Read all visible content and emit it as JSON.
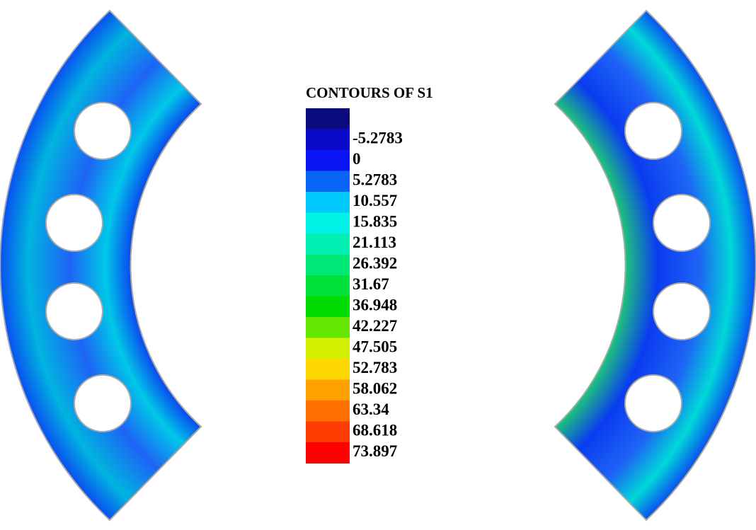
{
  "legend": {
    "title": "CONTOURS OF S1",
    "labels": [
      -5.2783,
      0,
      5.2783,
      10.557,
      15.835,
      21.113,
      26.392,
      31.67,
      36.948,
      42.227,
      47.505,
      52.783,
      58.062,
      63.34,
      68.618,
      73.897
    ],
    "colors": [
      "#0b0b80",
      "#0a0ac8",
      "#0a14f5",
      "#0a64f5",
      "#00c8ff",
      "#00f2e6",
      "#00f0b4",
      "#00e878",
      "#00e03c",
      "#00dc00",
      "#64e600",
      "#d2f000",
      "#ffd700",
      "#ffa000",
      "#ff7000",
      "#ff3c00",
      "#ff0000"
    ]
  }
}
